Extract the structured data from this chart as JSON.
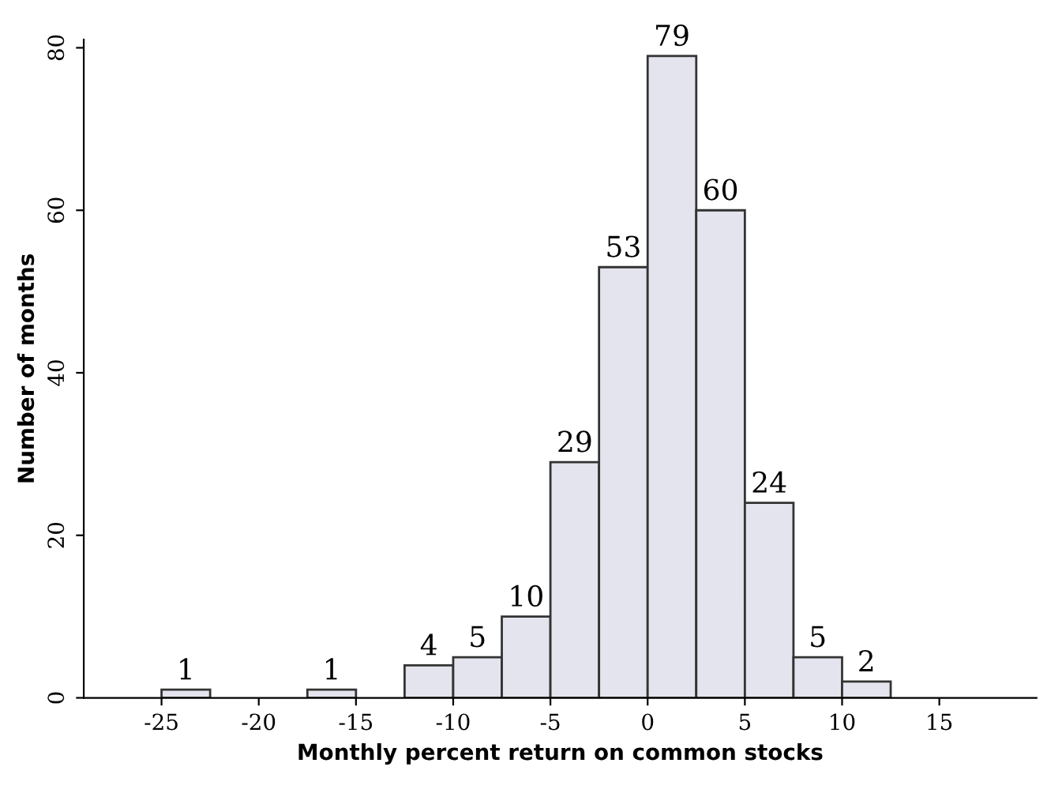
{
  "chart_data": {
    "type": "histogram",
    "xlabel": "Monthly percent return on common stocks",
    "ylabel": "Number of months",
    "bins": [
      -25,
      -22.5,
      -20,
      -17.5,
      -15,
      -12.5,
      -10,
      -7.5,
      -5,
      -2.5,
      0,
      2.5,
      5,
      7.5,
      10,
      12.5
    ],
    "values": [
      1,
      0,
      0,
      1,
      0,
      4,
      5,
      10,
      29,
      53,
      79,
      60,
      24,
      5,
      2
    ],
    "value_labels": [
      "1",
      null,
      null,
      "1",
      null,
      "4",
      "5",
      "10",
      "29",
      "53",
      "79",
      "60",
      "24",
      "5",
      "2"
    ],
    "color": "#e4e4ee",
    "xlim": [
      -29,
      20
    ],
    "ylim": [
      0,
      81
    ],
    "xticks": [
      -25,
      -20,
      -15,
      -10,
      -5,
      0,
      5,
      10,
      15
    ],
    "yticks": [
      0,
      20,
      40,
      60,
      80
    ],
    "grid": false
  }
}
